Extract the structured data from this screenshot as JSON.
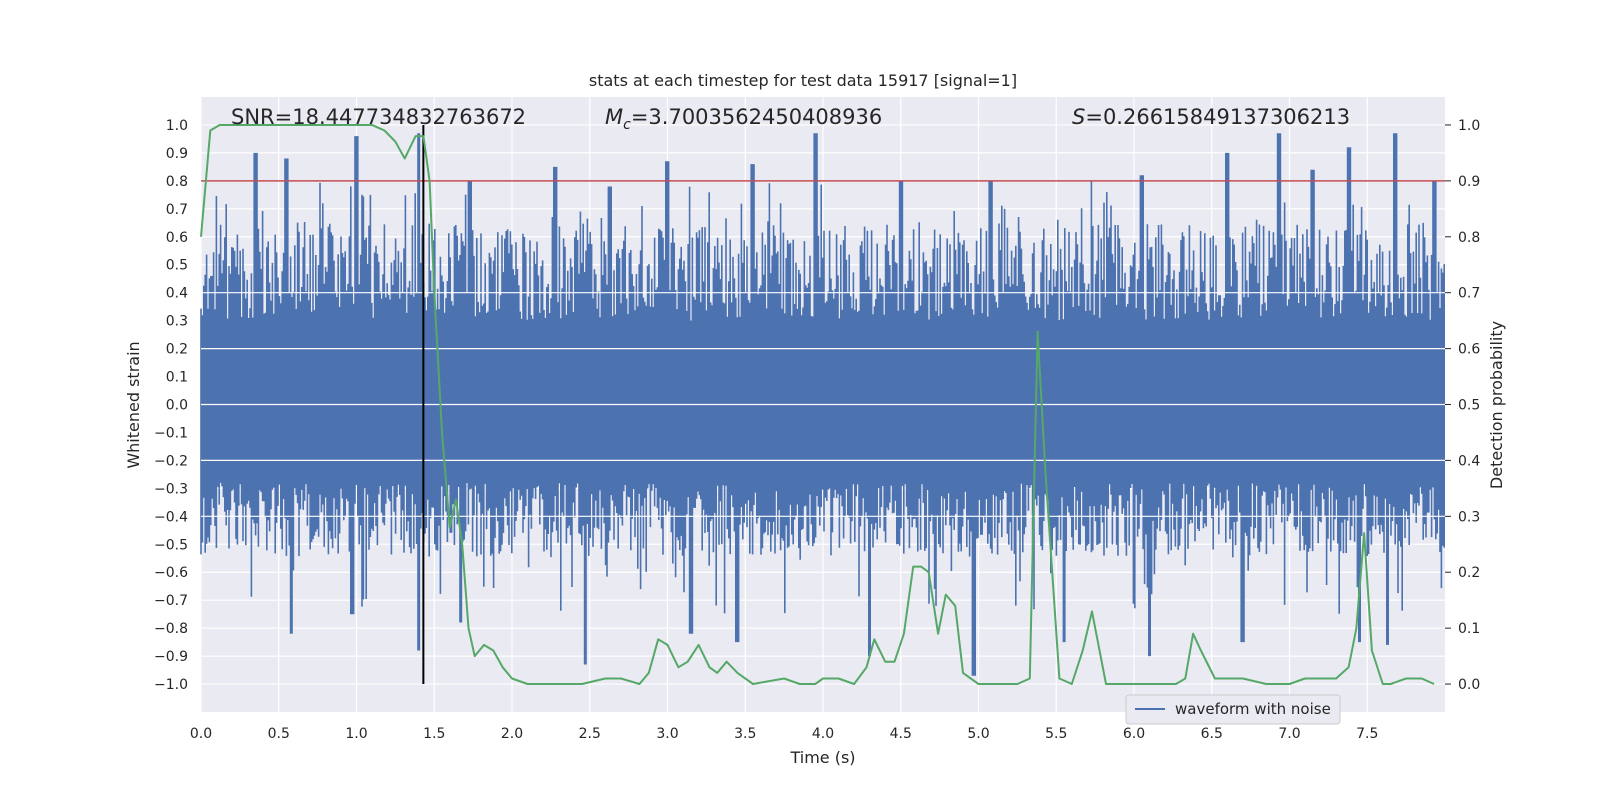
{
  "chart_data": {
    "type": "line",
    "title": "stats at each timestep for test data 15917 [signal=1]",
    "xlabel": "Time (s)",
    "ylabel_left": "Whitened strain",
    "ylabel_right": "Detection probability",
    "annotations": {
      "snr": "SNR=18.447734832763672",
      "mc_symbol": "M",
      "mc_subscript": "c",
      "mc_value": "=3.7003562450408936",
      "s_symbol": "S",
      "s_value": "=0.26615849137306213"
    },
    "xlim": [
      0.0,
      8.0
    ],
    "ylim_left": [
      -1.1,
      1.1
    ],
    "ylim_right": [
      -0.05,
      1.05
    ],
    "x_ticks": [
      "0.0",
      "0.5",
      "1.0",
      "1.5",
      "2.0",
      "2.5",
      "3.0",
      "3.5",
      "4.0",
      "4.5",
      "5.0",
      "5.5",
      "6.0",
      "6.5",
      "7.0",
      "7.5"
    ],
    "y_ticks_left": [
      "1.0",
      "0.9",
      "0.8",
      "0.7",
      "0.6",
      "0.5",
      "0.4",
      "0.3",
      "0.2",
      "0.1",
      "0.0",
      "−0.1",
      "−0.2",
      "−0.3",
      "−0.4",
      "−0.5",
      "−0.6",
      "−0.7",
      "−0.8",
      "−0.9",
      "−1.0"
    ],
    "y_ticks_right": [
      "1.0",
      "0.9",
      "0.8",
      "0.7",
      "0.6",
      "0.5",
      "0.4",
      "0.3",
      "0.2",
      "0.1",
      "0.0"
    ],
    "grid": true,
    "legend": {
      "entries": [
        "waveform with noise"
      ],
      "placement": "lower-right"
    },
    "threshold_line": {
      "y_right": 0.9,
      "color": "#c44e52"
    },
    "marker_line": {
      "x": 1.43,
      "y_bottom": -1.0,
      "y_top": 1.0,
      "color": "#000000"
    },
    "colors": {
      "waveform": "#4c72b0",
      "probability": "#55a868",
      "background": "#eaeaf2"
    },
    "waveform_envelope": {
      "x_step": 0.1,
      "upper_typical": 0.6,
      "lower_typical": -0.5,
      "peaks_upper": [
        [
          0.35,
          0.9
        ],
        [
          0.55,
          0.88
        ],
        [
          1.0,
          0.96
        ],
        [
          1.4,
          0.97
        ],
        [
          1.73,
          0.8
        ],
        [
          2.28,
          0.85
        ],
        [
          2.63,
          0.78
        ],
        [
          3.0,
          0.87
        ],
        [
          3.55,
          0.86
        ],
        [
          3.95,
          0.97
        ],
        [
          4.5,
          0.8
        ],
        [
          5.08,
          0.8
        ],
        [
          6.05,
          0.82
        ],
        [
          6.6,
          0.9
        ],
        [
          6.93,
          0.97
        ],
        [
          7.15,
          0.84
        ],
        [
          7.38,
          0.92
        ],
        [
          7.68,
          0.97
        ],
        [
          7.93,
          0.8
        ]
      ],
      "peaks_lower": [
        [
          0.58,
          -0.82
        ],
        [
          0.97,
          -0.75
        ],
        [
          1.4,
          -0.88
        ],
        [
          1.67,
          -0.78
        ],
        [
          2.47,
          -0.93
        ],
        [
          3.15,
          -0.82
        ],
        [
          3.45,
          -0.85
        ],
        [
          4.3,
          -0.9
        ],
        [
          4.97,
          -0.97
        ],
        [
          5.55,
          -0.85
        ],
        [
          6.1,
          -0.9
        ],
        [
          6.7,
          -0.85
        ],
        [
          7.45,
          -0.85
        ],
        [
          7.63,
          -0.86
        ]
      ]
    },
    "series": [
      {
        "name": "waveform with noise",
        "axis": "left",
        "type": "waveform"
      },
      {
        "axis": "right",
        "type": "line",
        "x": [
          0.0,
          0.06,
          0.12,
          0.2,
          0.3,
          0.5,
          0.7,
          0.9,
          1.1,
          1.18,
          1.25,
          1.31,
          1.38,
          1.43,
          1.47,
          1.5,
          1.55,
          1.6,
          1.64,
          1.68,
          1.72,
          1.76,
          1.82,
          1.88,
          1.94,
          2.0,
          2.1,
          2.25,
          2.45,
          2.6,
          2.7,
          2.82,
          2.88,
          2.94,
          3.0,
          3.07,
          3.13,
          3.2,
          3.27,
          3.32,
          3.38,
          3.45,
          3.55,
          3.75,
          3.85,
          3.95,
          4.0,
          4.1,
          4.2,
          4.28,
          4.33,
          4.4,
          4.46,
          4.52,
          4.58,
          4.63,
          4.68,
          4.74,
          4.79,
          4.85,
          4.9,
          5.0,
          5.15,
          5.25,
          5.33,
          5.38,
          5.43,
          5.52,
          5.6,
          5.67,
          5.73,
          5.82,
          6.0,
          6.15,
          6.27,
          6.33,
          6.38,
          6.43,
          6.52,
          6.7,
          6.85,
          7.0,
          7.1,
          7.3,
          7.38,
          7.43,
          7.48,
          7.53,
          7.6,
          7.65,
          7.75,
          7.8,
          7.85,
          7.93
        ],
        "values": [
          0.8,
          0.99,
          1.0,
          1.0,
          1.0,
          1.0,
          1.0,
          1.0,
          1.0,
          0.99,
          0.97,
          0.94,
          0.98,
          0.98,
          0.9,
          0.7,
          0.45,
          0.28,
          0.33,
          0.25,
          0.1,
          0.05,
          0.07,
          0.06,
          0.03,
          0.01,
          0.0,
          0.0,
          0.0,
          0.01,
          0.01,
          0.0,
          0.02,
          0.08,
          0.07,
          0.03,
          0.04,
          0.07,
          0.03,
          0.02,
          0.04,
          0.02,
          0.0,
          0.01,
          0.0,
          0.0,
          0.01,
          0.01,
          0.0,
          0.03,
          0.08,
          0.04,
          0.04,
          0.09,
          0.21,
          0.21,
          0.2,
          0.09,
          0.16,
          0.14,
          0.02,
          0.0,
          0.0,
          0.0,
          0.01,
          0.63,
          0.38,
          0.01,
          0.0,
          0.06,
          0.13,
          0.0,
          0.0,
          0.0,
          0.0,
          0.01,
          0.09,
          0.06,
          0.01,
          0.01,
          0.0,
          0.0,
          0.01,
          0.01,
          0.03,
          0.1,
          0.27,
          0.06,
          0.0,
          0.0,
          0.01,
          0.01,
          0.01,
          0.0
        ]
      }
    ]
  }
}
